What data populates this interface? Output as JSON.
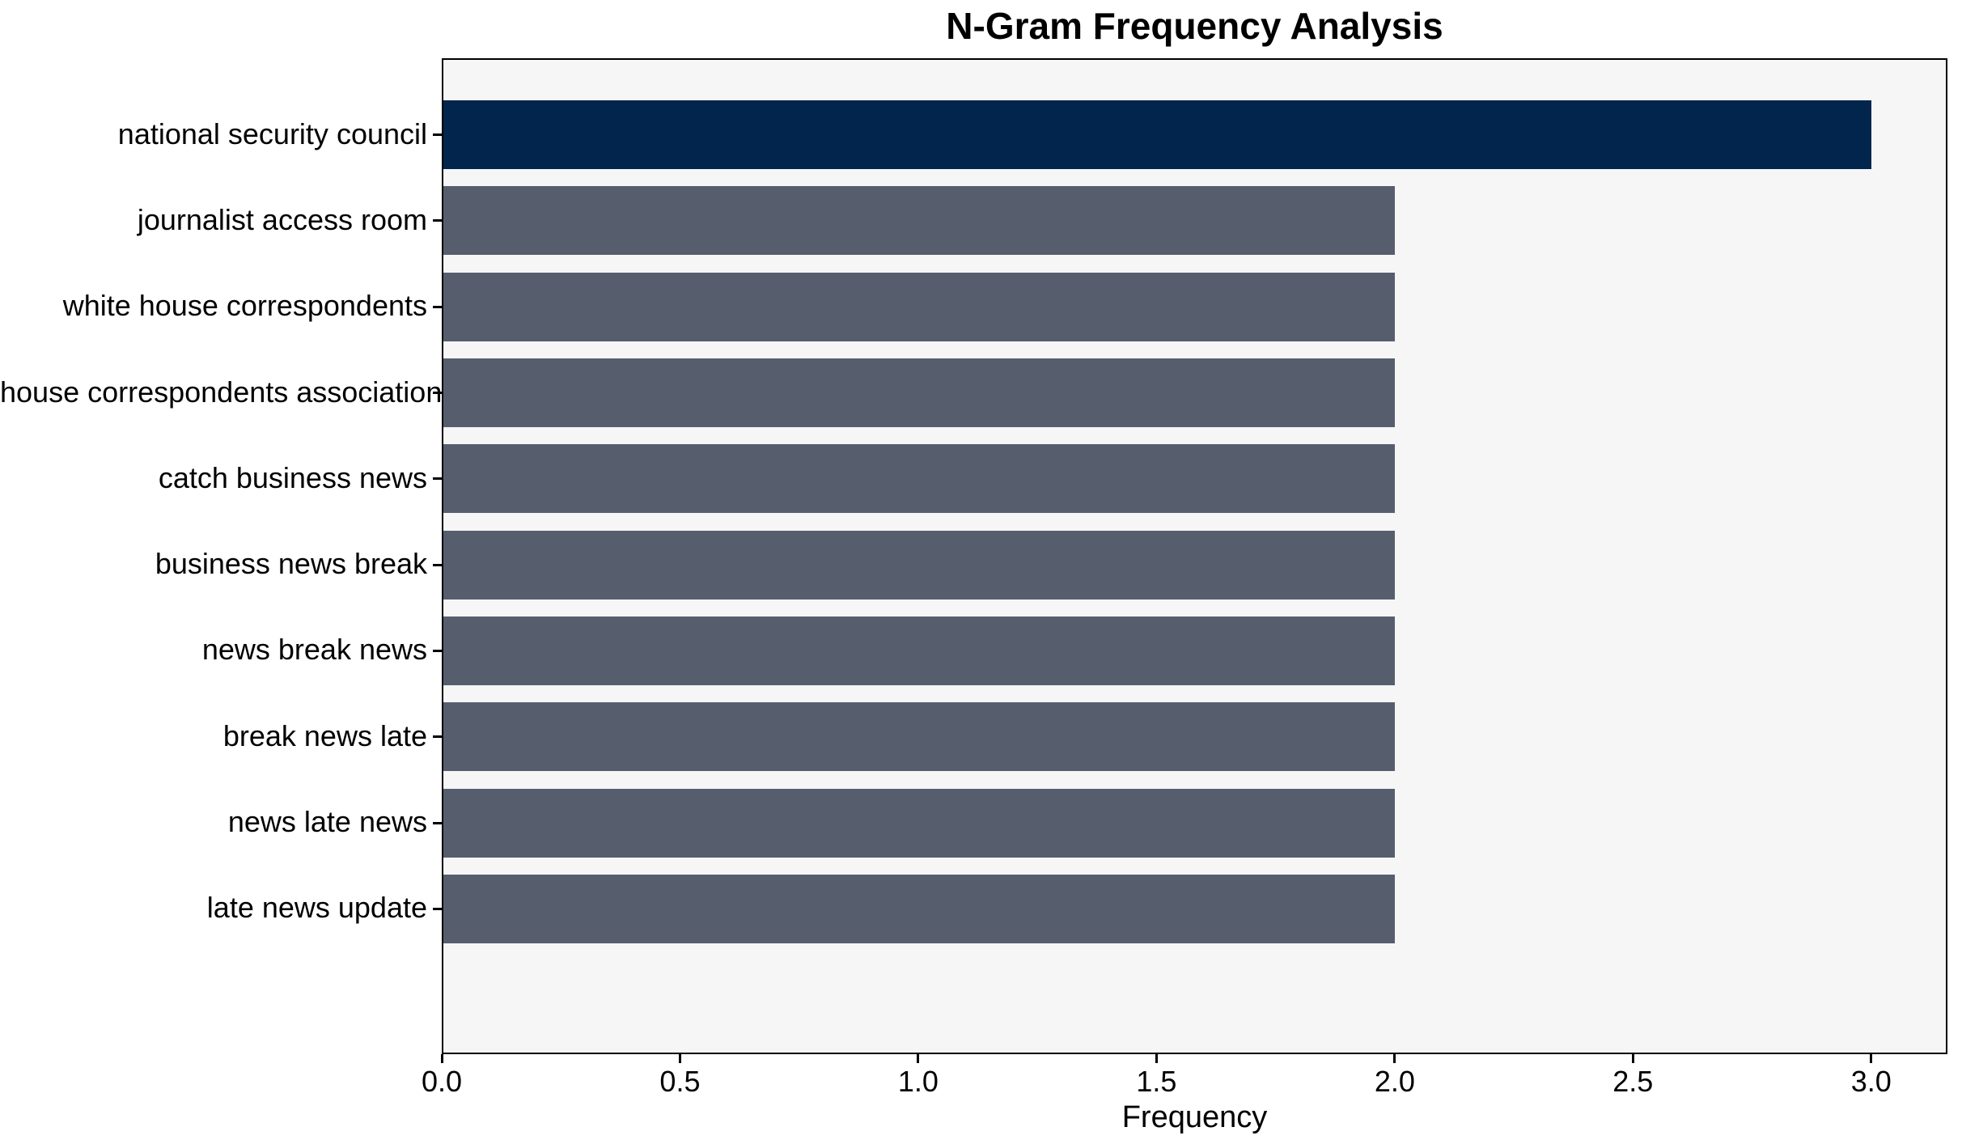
{
  "chart_data": {
    "type": "bar",
    "orientation": "horizontal",
    "title": "N-Gram Frequency Analysis",
    "xlabel": "Frequency",
    "ylabel": "",
    "categories": [
      "national security council",
      "journalist access room",
      "white house correspondents",
      "house correspondents association",
      "catch business news",
      "business news break",
      "news break news",
      "break news late",
      "news late news",
      "late news update"
    ],
    "values": [
      3,
      2,
      2,
      2,
      2,
      2,
      2,
      2,
      2,
      2
    ],
    "xlim": [
      0,
      3.16
    ],
    "xticks": [
      0.0,
      0.5,
      1.0,
      1.5,
      2.0,
      2.5,
      3.0
    ],
    "xtick_labels": [
      "0.0",
      "0.5",
      "1.0",
      "1.5",
      "2.0",
      "2.5",
      "3.0"
    ],
    "grid": false,
    "legend": null,
    "highlight_index": 0,
    "colors": {
      "highlight_bar": "#02254d",
      "default_bar": "#565e6e",
      "plot_background": "#f6f6f7",
      "figure_background": "#ffffff",
      "axis": "#000000",
      "text": "#000000"
    }
  }
}
